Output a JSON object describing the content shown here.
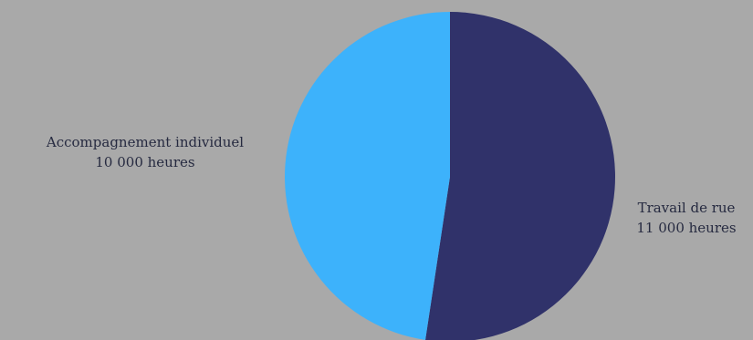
{
  "chart_data": {
    "type": "pie",
    "title": "",
    "start_angle_deg": 0,
    "direction": "clockwise",
    "slices": [
      {
        "label": "Travail de rue",
        "value_label": "11 000 heures",
        "value": 11000,
        "color": "#30326a"
      },
      {
        "label": "Accompagnement individuel",
        "value_label": "10 000 heures",
        "value": 10000,
        "color": "#3db2fb"
      }
    ]
  },
  "background_color": "#a9a9a9"
}
